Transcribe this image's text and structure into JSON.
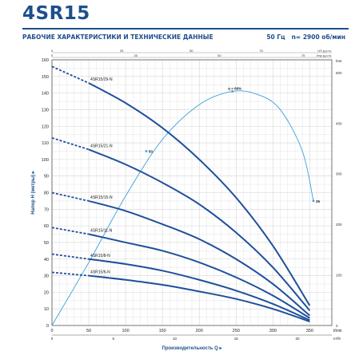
{
  "header": {
    "title": "4SR15",
    "subtitle": "РАБОЧИЕ ХАРАКТЕРИСТИКИ И ТЕХНИЧЕСКИЕ ДАННЫЕ",
    "frequency": "50 Гц",
    "speed": "n= 2900 об/мин"
  },
  "colors": {
    "brand": "#1d4f8c",
    "curve": "#1f4f9c",
    "efficiency": "#3aa0dc",
    "grid": "#d4d4d4"
  },
  "chart_data": {
    "type": "line",
    "xlabel": "Производительность Q",
    "ylabel": "Напор H (метры)",
    "x_unit": "l/min",
    "x_unit2": "m³/h",
    "xlim": [
      0,
      380
    ],
    "ylim": [
      0,
      160
    ],
    "x_ticks": [
      0,
      50,
      100,
      150,
      200,
      250,
      300,
      350
    ],
    "x_tick_labels": [
      "0",
      "50",
      "100",
      "150",
      "200",
      "250",
      "300",
      "350"
    ],
    "y_ticks": [
      0,
      10,
      20,
      30,
      40,
      50,
      60,
      70,
      80,
      90,
      100,
      110,
      120,
      130,
      140,
      150,
      160
    ],
    "y_tick_labels": [
      "0",
      "10",
      "20",
      "30",
      "40",
      "50",
      "60",
      "70",
      "80",
      "90",
      "100",
      "110",
      "120",
      "130",
      "140",
      "150",
      "160"
    ],
    "top_axis_us": {
      "unit": "US g.p.m.",
      "ticks": [
        0,
        25,
        50,
        75
      ],
      "max": 100.4
    },
    "top_axis_imp": {
      "unit": "Imp g.p.m.",
      "ticks": [
        0,
        25,
        50,
        75
      ],
      "max": 83.6
    },
    "bottom_axis_m3h": {
      "unit": "m³/h",
      "ticks": [
        0,
        5,
        10,
        15,
        20
      ],
      "max": 22.8
    },
    "right_axis_feet": {
      "unit": "feet",
      "ticks": [
        0,
        100,
        200,
        300,
        400,
        500
      ],
      "max": 525
    },
    "grid": true,
    "series": [
      {
        "name": "4SR15/29-N",
        "dashed_end": 50,
        "x": [
          0,
          50,
          100,
          150,
          200,
          250,
          300,
          350
        ],
        "y": [
          156,
          146,
          134,
          119,
          100,
          77,
          48,
          12
        ]
      },
      {
        "name": "4SR15/21-N",
        "dashed_end": 50,
        "x": [
          0,
          50,
          100,
          150,
          200,
          250,
          300,
          350
        ],
        "y": [
          113,
          106,
          97,
          86,
          73,
          56,
          35,
          9
        ]
      },
      {
        "name": "4SR15/15-N",
        "dashed_end": 50,
        "x": [
          0,
          50,
          100,
          150,
          200,
          250,
          300,
          350
        ],
        "y": [
          80,
          75,
          69,
          61,
          52,
          40,
          25,
          6
        ]
      },
      {
        "name": "4SR15/11-N",
        "dashed_end": 50,
        "x": [
          0,
          50,
          100,
          150,
          200,
          250,
          300,
          350
        ],
        "y": [
          59,
          55,
          50,
          45,
          38,
          29,
          18,
          4.5
        ]
      },
      {
        "name": "4SR15/8-N",
        "dashed_end": 50,
        "x": [
          0,
          50,
          100,
          150,
          200,
          250,
          300,
          350
        ],
        "y": [
          43,
          40,
          37,
          33,
          27.5,
          21,
          13,
          3.2
        ]
      },
      {
        "name": "4SR15/6-N",
        "dashed_end": 50,
        "x": [
          0,
          50,
          100,
          150,
          200,
          250,
          300,
          350
        ],
        "y": [
          32,
          30,
          27.5,
          24.5,
          20.5,
          16,
          10,
          2.4
        ]
      }
    ],
    "efficiency_curve": {
      "x": [
        0,
        50,
        100,
        150,
        200,
        245,
        280,
        310,
        340,
        355
      ],
      "y": [
        0,
        38,
        78,
        112,
        133,
        141,
        139,
        130,
        105,
        75
      ],
      "label_max": "η = 66%",
      "label_max_at": [
        245,
        141
      ],
      "label_mid": "50",
      "label_mid_at": [
        128,
        105
      ],
      "label_end": "35",
      "label_end_at": [
        355,
        75
      ]
    }
  }
}
